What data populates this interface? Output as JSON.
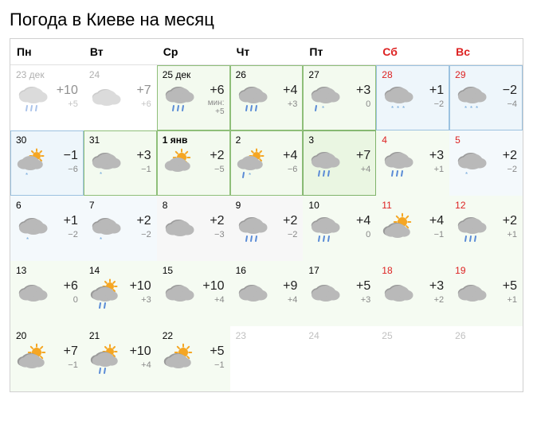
{
  "title": "Погода в Киеве на месяц",
  "weekdays": [
    "Пн",
    "Вт",
    "Ср",
    "Чт",
    "Пт",
    "Сб",
    "Вс"
  ],
  "colors": {
    "weekend": "#d22",
    "text": "#222",
    "muted": "#888",
    "border": "#d0d0d0",
    "cloud": "#b9b9b9",
    "cloud_dark": "#9a9a9a",
    "sun": "#f5a623",
    "rain": "#5a8bd6",
    "snow": "#6fa6da"
  },
  "cells": [
    {
      "date": "23 дек",
      "icon": "rain",
      "hi": "+10",
      "lo": "+5",
      "past": true
    },
    {
      "date": "24",
      "icon": "cloud",
      "hi": "+7",
      "lo": "+6",
      "past": true
    },
    {
      "date": "25 дек",
      "icon": "rain",
      "hi": "+6",
      "note": "мин: +5",
      "variant": "hl-green"
    },
    {
      "date": "26",
      "icon": "rain",
      "hi": "+4",
      "lo": "+3",
      "variant": "hl-green"
    },
    {
      "date": "27",
      "icon": "mix",
      "hi": "+3",
      "lo": "0",
      "variant": "hl-green"
    },
    {
      "date": "28",
      "icon": "snow",
      "hi": "+1",
      "lo": "−2",
      "weekend": true,
      "variant": "hl-blue"
    },
    {
      "date": "29",
      "icon": "snow",
      "hi": "−2",
      "lo": "−4",
      "weekend": true,
      "variant": "hl-blue"
    },
    {
      "date": "30",
      "icon": "sunsnow",
      "hi": "−1",
      "lo": "−6",
      "variant": "hl-blue"
    },
    {
      "date": "31",
      "icon": "lightsnow",
      "hi": "+3",
      "lo": "−1",
      "variant": "hl-green"
    },
    {
      "date": "1 янв",
      "icon": "sun",
      "hi": "+2",
      "lo": "−5",
      "today": true,
      "variant": "hl-green"
    },
    {
      "date": "2",
      "icon": "sunmix",
      "hi": "+4",
      "lo": "−6",
      "variant": "hl-green"
    },
    {
      "date": "3",
      "icon": "rain",
      "hi": "+7",
      "lo": "+4",
      "variant": "hl-green2"
    },
    {
      "date": "4",
      "icon": "rain",
      "hi": "+3",
      "lo": "+1",
      "weekend": true,
      "variant": "tint-green"
    },
    {
      "date": "5",
      "icon": "lightsnow",
      "hi": "+2",
      "lo": "−2",
      "weekend": true,
      "variant": "tint-blue"
    },
    {
      "date": "6",
      "icon": "lightsnow",
      "hi": "+1",
      "lo": "−2",
      "variant": "tint-blue"
    },
    {
      "date": "7",
      "icon": "lightsnow",
      "hi": "+2",
      "lo": "−2",
      "variant": "tint-blue"
    },
    {
      "date": "8",
      "icon": "cloud",
      "hi": "+2",
      "lo": "−3",
      "variant": "tint-gray"
    },
    {
      "date": "9",
      "icon": "rain",
      "hi": "+2",
      "lo": "−2",
      "variant": "tint-gray"
    },
    {
      "date": "10",
      "icon": "rain",
      "hi": "+4",
      "lo": "0",
      "variant": "tint-green"
    },
    {
      "date": "11",
      "icon": "suncloud",
      "hi": "+4",
      "lo": "−1",
      "weekend": true,
      "variant": "tint-green"
    },
    {
      "date": "12",
      "icon": "rain",
      "hi": "+2",
      "lo": "+1",
      "weekend": true,
      "variant": "tint-green"
    },
    {
      "date": "13",
      "icon": "cloud",
      "hi": "+6",
      "lo": "0",
      "variant": "tint-green"
    },
    {
      "date": "14",
      "icon": "sunrain",
      "hi": "+10",
      "lo": "+3",
      "variant": "tint-green"
    },
    {
      "date": "15",
      "icon": "cloud",
      "hi": "+10",
      "lo": "+4",
      "variant": "tint-green"
    },
    {
      "date": "16",
      "icon": "cloud",
      "hi": "+9",
      "lo": "+4",
      "variant": "tint-green"
    },
    {
      "date": "17",
      "icon": "cloud",
      "hi": "+5",
      "lo": "+3",
      "variant": "tint-green"
    },
    {
      "date": "18",
      "icon": "cloud",
      "hi": "+3",
      "lo": "+2",
      "weekend": true,
      "variant": "tint-green"
    },
    {
      "date": "19",
      "icon": "cloud",
      "hi": "+5",
      "lo": "+1",
      "weekend": true,
      "variant": "tint-green"
    },
    {
      "date": "20",
      "icon": "suncloud",
      "hi": "+7",
      "lo": "−1",
      "variant": "tint-green"
    },
    {
      "date": "21",
      "icon": "sunrain",
      "hi": "+10",
      "lo": "+4",
      "variant": "tint-green"
    },
    {
      "date": "22",
      "icon": "suncloud",
      "hi": "+5",
      "lo": "−1",
      "variant": "tint-green"
    },
    {
      "date": "23",
      "empty": true
    },
    {
      "date": "24",
      "empty": true
    },
    {
      "date": "25",
      "empty": true,
      "weekend": true
    },
    {
      "date": "26",
      "empty": true,
      "weekend": true
    }
  ]
}
